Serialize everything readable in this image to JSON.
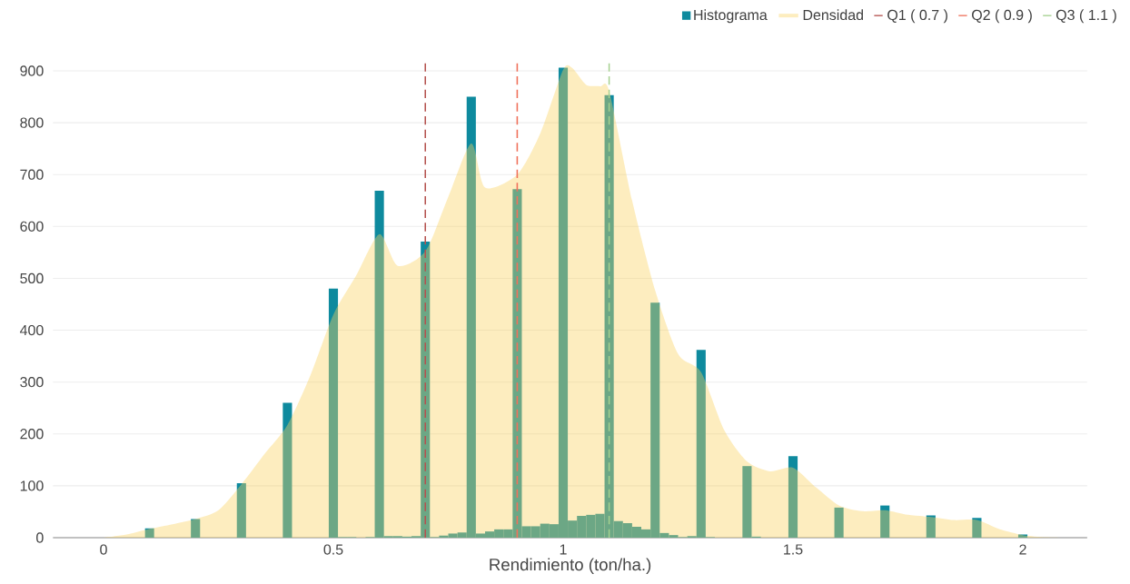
{
  "chart_data": {
    "type": "histogram",
    "xlabel": "Rendimiento (ton/ha.)",
    "xlim": [
      -0.11,
      2.14
    ],
    "ylim": [
      0,
      915
    ],
    "xticks": [
      0,
      0.5,
      1,
      1.5,
      2
    ],
    "yticks": [
      0,
      100,
      200,
      300,
      400,
      500,
      600,
      700,
      800,
      900
    ],
    "grid": "y",
    "legend": "top right",
    "series": [
      {
        "name": "Histograma",
        "color": "#0e8a9e",
        "bins": [
          0.09,
          0.11,
          0.13,
          0.15,
          0.17,
          0.19,
          0.21,
          0.23,
          0.25,
          0.27,
          0.29,
          0.31,
          0.33,
          0.35,
          0.37,
          0.39,
          0.41,
          0.43,
          0.45,
          0.47,
          0.49,
          0.51,
          0.53,
          0.55,
          0.57,
          0.59,
          0.61,
          0.63,
          0.65,
          0.67,
          0.69,
          0.71,
          0.73,
          0.75,
          0.77,
          0.79,
          0.81,
          0.83,
          0.85,
          0.87,
          0.89,
          0.91,
          0.93,
          0.95,
          0.97,
          0.99,
          1.01,
          1.03,
          1.05,
          1.07,
          1.09,
          1.11,
          1.13,
          1.15,
          1.17,
          1.19,
          1.21,
          1.23,
          1.25,
          1.27,
          1.29,
          1.31,
          1.33,
          1.35,
          1.37,
          1.39,
          1.41,
          1.43,
          1.45,
          1.47,
          1.49,
          1.51,
          1.53,
          1.55,
          1.57,
          1.59,
          1.61,
          1.63,
          1.65,
          1.67,
          1.69,
          1.71,
          1.73,
          1.75,
          1.77,
          1.79,
          1.81,
          1.83,
          1.85,
          1.87,
          1.89,
          1.91,
          1.93,
          1.95,
          1.97,
          1.99,
          2.01
        ],
        "values": [
          18,
          0,
          0,
          0,
          0,
          36,
          0,
          0,
          0,
          0,
          105,
          0,
          0,
          0,
          0,
          260,
          0,
          0,
          0,
          0,
          480,
          1,
          1,
          0,
          1,
          669,
          3,
          3,
          2,
          3,
          571,
          1,
          4,
          8,
          10,
          850,
          8,
          12,
          16,
          16,
          672,
          22,
          22,
          27,
          26,
          906,
          33,
          42,
          44,
          46,
          853,
          32,
          28,
          21,
          16,
          453,
          9,
          5,
          1,
          3,
          362,
          1,
          0,
          0,
          0,
          138,
          2,
          0,
          0,
          0,
          157,
          0,
          0,
          0,
          0,
          58,
          0,
          0,
          0,
          0,
          62,
          0,
          0,
          0,
          0,
          43,
          0,
          0,
          0,
          0,
          38,
          0,
          0,
          0,
          0,
          6
        ]
      },
      {
        "name": "Densidad",
        "type": "area",
        "color": "#f9d35f",
        "x": [
          0,
          0.05,
          0.1,
          0.15,
          0.2,
          0.25,
          0.3,
          0.35,
          0.4,
          0.45,
          0.5,
          0.55,
          0.6,
          0.64,
          0.7,
          0.75,
          0.8,
          0.83,
          0.9,
          0.95,
          1.0,
          1.02,
          1.05,
          1.08,
          1.1,
          1.15,
          1.2,
          1.25,
          1.3,
          1.35,
          1.4,
          1.45,
          1.5,
          1.55,
          1.6,
          1.65,
          1.7,
          1.75,
          1.8,
          1.85,
          1.9,
          1.95,
          2.0,
          2.05,
          2.1
        ],
        "values": [
          0,
          6,
          17,
          26,
          36,
          53,
          103,
          161,
          217,
          313,
          430,
          506,
          585,
          524,
          552,
          657,
          760,
          675,
          700,
          779,
          902,
          905,
          873,
          870,
          861,
          650,
          477,
          354,
          319,
          208,
          147,
          128,
          135,
          97,
          62,
          51,
          53,
          44,
          40,
          34,
          34,
          16,
          5,
          1,
          0
        ]
      }
    ],
    "ref_lines": [
      {
        "axis": "x",
        "value": 0.7,
        "label": "Q1 ( 0.7 )",
        "color": "#b5524f",
        "line_style": "dashed"
      },
      {
        "axis": "x",
        "value": 0.9,
        "label": "Q2 ( 0.9 )",
        "color": "#f0725c",
        "line_style": "dashed"
      },
      {
        "axis": "x",
        "value": 1.1,
        "label": "Q3 ( 1.1 )",
        "color": "#a5d08f",
        "line_style": "dashed"
      }
    ]
  }
}
